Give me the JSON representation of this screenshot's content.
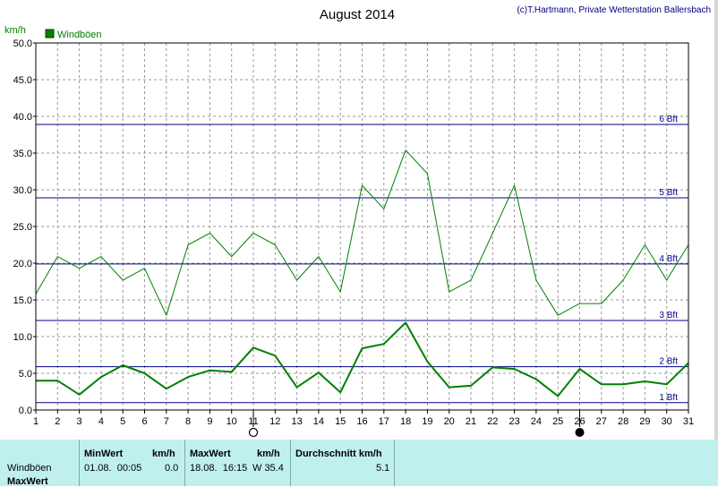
{
  "title": "August 2014",
  "copyright": "(c)T.Hartmann, Private Wetterstation Ballersbach",
  "colors": {
    "series": "#008000",
    "beaufort": "#00008b",
    "grid": "#9a9a9a",
    "footer_bg": "#bff0ee",
    "text": "#000000"
  },
  "chart_data": {
    "type": "line",
    "ylabel": "km/h",
    "ylim": [
      0,
      50
    ],
    "yticks": [
      "0.0",
      "5.0",
      "10.0",
      "15.0",
      "20.0",
      "25.0",
      "30.0",
      "35.0",
      "40.0",
      "45.0",
      "50.0"
    ],
    "x": [
      1,
      2,
      3,
      4,
      5,
      6,
      7,
      8,
      9,
      10,
      11,
      12,
      13,
      14,
      15,
      16,
      17,
      18,
      19,
      20,
      21,
      22,
      23,
      24,
      25,
      26,
      27,
      28,
      29,
      30,
      31
    ],
    "xticks": [
      "1",
      "2",
      "3",
      "4",
      "5",
      "6",
      "7",
      "8",
      "9",
      "10",
      "11",
      "12",
      "13",
      "14",
      "15",
      "16",
      "17",
      "18",
      "19",
      "20",
      "21",
      "22",
      "23",
      "24",
      "25",
      "26",
      "27",
      "28",
      "29",
      "30",
      "31"
    ],
    "grid": true,
    "legend": {
      "position": "top-left",
      "entries": [
        "Windböen"
      ]
    },
    "series": [
      {
        "name": "Windböen",
        "style": "max",
        "values": [
          15.8,
          20.9,
          19.3,
          20.9,
          17.7,
          19.3,
          12.9,
          22.5,
          24.1,
          20.9,
          24.1,
          22.5,
          17.7,
          20.9,
          16.1,
          30.6,
          27.4,
          35.4,
          32.2,
          16.1,
          17.7,
          24.1,
          30.6,
          17.7,
          12.9,
          14.5,
          14.5,
          17.7,
          22.5,
          17.7,
          22.5
        ]
      },
      {
        "name": "",
        "style": "avg",
        "values": [
          4.0,
          4.0,
          2.1,
          4.5,
          6.1,
          5.0,
          2.9,
          4.5,
          5.4,
          5.2,
          8.5,
          7.4,
          3.1,
          5.1,
          2.4,
          8.4,
          9.0,
          11.9,
          6.6,
          3.1,
          3.3,
          5.8,
          5.6,
          4.2,
          1.9,
          5.6,
          3.5,
          3.5,
          3.9,
          3.5,
          6.4
        ]
      }
    ],
    "beaufort_lines": [
      {
        "value": 1,
        "label": "1 Bft"
      },
      {
        "value": 5.9,
        "label": "2 Bft"
      },
      {
        "value": 12.2,
        "label": "3 Bft"
      },
      {
        "value": 19.9,
        "label": "4 Bft"
      },
      {
        "value": 28.9,
        "label": "5 Bft"
      },
      {
        "value": 38.9,
        "label": "6 Bft"
      }
    ],
    "moon_phases": [
      {
        "day": 11,
        "phase": "full"
      },
      {
        "day": 26,
        "phase": "new"
      }
    ]
  },
  "footer": {
    "row_labels": [
      "Windböen",
      "MaxWert"
    ],
    "min_header": "MinWert",
    "min_unit": "km/h",
    "min_datetime": "01.08.  00:05",
    "min_value": "0.0",
    "max_header": "MaxWert",
    "max_unit": "km/h",
    "max_datetime": "18.08.  16:15",
    "max_value": "W 35.4",
    "avg_header": "Durchschnitt km/h",
    "avg_value": "5.1"
  }
}
